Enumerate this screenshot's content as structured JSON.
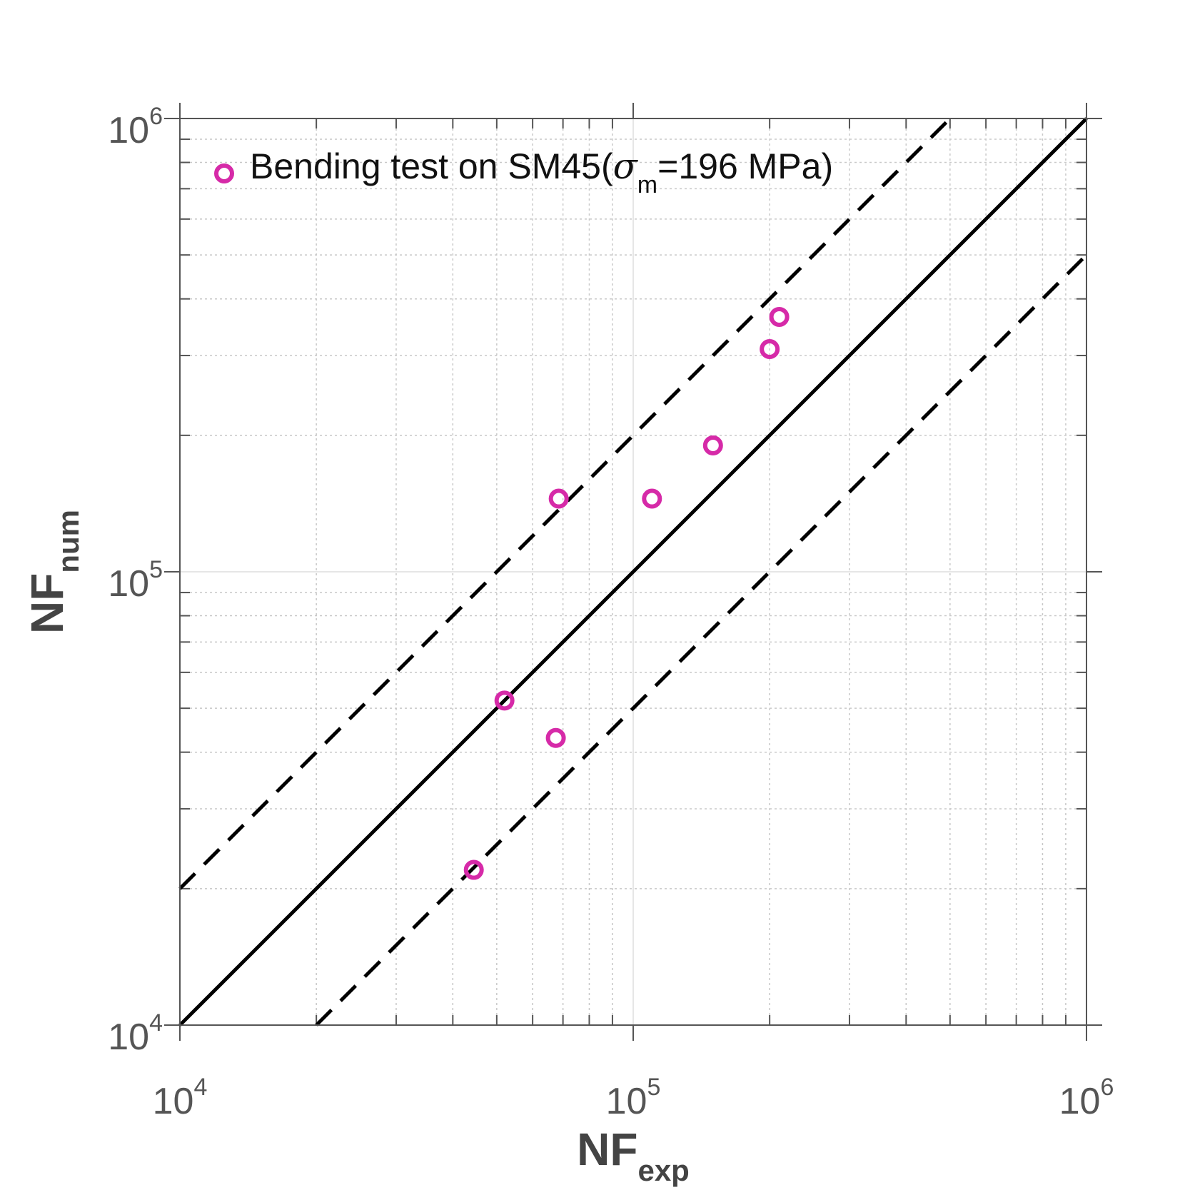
{
  "chart_data": {
    "type": "scatter",
    "x_scale": "log",
    "y_scale": "log",
    "xlim": [
      10000,
      1000000
    ],
    "ylim": [
      10000,
      1000000
    ],
    "grid": true,
    "legend_position": "top-left",
    "xlabel": {
      "base": "NF",
      "sub": "exp"
    },
    "ylabel": {
      "base": "NF",
      "sub": "num"
    },
    "x_ticks": [
      {
        "value": 10000,
        "base": "10",
        "exp": "4"
      },
      {
        "value": 100000,
        "base": "10",
        "exp": "5"
      },
      {
        "value": 1000000,
        "base": "10",
        "exp": "6"
      }
    ],
    "y_ticks": [
      {
        "value": 10000,
        "base": "10",
        "exp": "4"
      },
      {
        "value": 100000,
        "base": "10",
        "exp": "5"
      },
      {
        "value": 1000000,
        "base": "10",
        "exp": "6"
      }
    ],
    "legend": {
      "prefix": "Bending test on SM45(",
      "symbol": "σ",
      "sub": "m",
      "suffix": "=196 MPa)"
    },
    "marker_color": "#d62aa8",
    "line_color": "#000000",
    "series": [
      {
        "marker": "circle",
        "x": [
          44500,
          52000,
          67500,
          68500,
          110000,
          150000,
          200000,
          210000
        ],
        "y": [
          22000,
          52000,
          43000,
          145000,
          145000,
          190000,
          310000,
          365000
        ]
      }
    ],
    "reference_lines": [
      {
        "style": "solid",
        "x": [
          10000,
          1000000
        ],
        "y": [
          10000,
          1000000
        ]
      },
      {
        "style": "dashed",
        "x": [
          10000,
          500000
        ],
        "y": [
          20000,
          1000000
        ]
      },
      {
        "style": "dashed",
        "x": [
          20000,
          1000000
        ],
        "y": [
          10000,
          500000
        ]
      }
    ]
  }
}
